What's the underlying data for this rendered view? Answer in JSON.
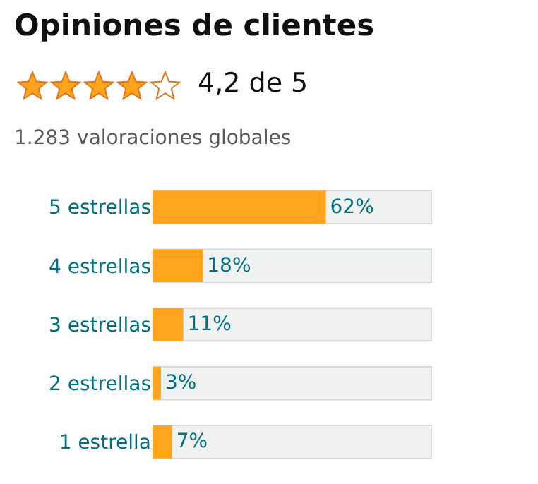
{
  "chart_data": {
    "type": "bar",
    "orientation": "horizontal",
    "title": "Opiniones de clientes",
    "subtitle": "4,2 de 5",
    "annotations": [
      "1.283 valoraciones globales"
    ],
    "categories": [
      "5 estrellas",
      "4 estrellas",
      "3 estrellas",
      "2 estrellas",
      "1 estrella"
    ],
    "values": [
      62,
      18,
      11,
      3,
      7
    ],
    "value_labels": [
      "62%",
      "18%",
      "11%",
      "3%",
      "7%"
    ],
    "color": "#ffa41c",
    "xlim": [
      0,
      100
    ],
    "tick_labels": "y",
    "grid": false,
    "legend": false
  }
}
